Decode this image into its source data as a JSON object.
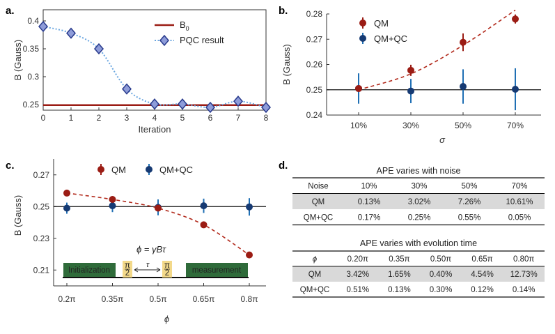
{
  "panels": {
    "a": "a.",
    "b": "b.",
    "c": "c.",
    "d": "d."
  },
  "colors": {
    "red": "#9b1c14",
    "blue": "#163a73",
    "bar_blue": "#1f6fb4",
    "diamond_fill": "#8e9cd9",
    "diamond_edge": "#283a8c",
    "dotted": "#6aa6e0",
    "green": "#2f6b3a",
    "pulse": "#f3d98a",
    "table_shade": "#d9d9d9"
  },
  "chart_data": [
    {
      "id": "a",
      "type": "line",
      "title": "",
      "xlabel": "Iteration",
      "ylabel": "B (Gauss)",
      "xlim": [
        0,
        8
      ],
      "ylim": [
        0.24,
        0.42
      ],
      "xticks": [
        "0",
        "1",
        "2",
        "3",
        "4",
        "5",
        "6",
        "7",
        "8"
      ],
      "yticks": [
        0.25,
        0.3,
        0.35,
        0.4
      ],
      "ytick_labels": [
        "0.25",
        "0.3",
        "0.35",
        "0.4"
      ],
      "legend": [
        "B_0",
        "PQC result"
      ],
      "b0": 0.249,
      "series": [
        {
          "name": "PQC result",
          "x": [
            0,
            1,
            2,
            3,
            4,
            5,
            6,
            7,
            8
          ],
          "values": [
            0.39,
            0.378,
            0.35,
            0.278,
            0.251,
            0.251,
            0.245,
            0.256,
            0.245
          ]
        }
      ]
    },
    {
      "id": "b",
      "type": "scatter",
      "xlabel": "σ",
      "ylabel": "B (Gauss)",
      "ylim": [
        0.24,
        0.28
      ],
      "categories": [
        "10%",
        "30%",
        "50%",
        "70%"
      ],
      "yticks": [
        "0.24",
        "0.25",
        "0.26",
        "0.27",
        "0.28"
      ],
      "reference": 0.25,
      "legend": [
        "QM",
        "QM+QC"
      ],
      "series": [
        {
          "name": "QM",
          "values": [
            0.2505,
            0.2577,
            0.2688,
            0.278
          ],
          "err": [
            0.0,
            0.0022,
            0.0035,
            0.0018
          ]
        },
        {
          "name": "QM+QC",
          "values": [
            0.2505,
            0.2495,
            0.2513,
            0.2502
          ],
          "err": [
            0.006,
            0.0048,
            0.0068,
            0.0083
          ]
        }
      ],
      "fit": {
        "name": "QM fit",
        "values": [
          0.25,
          0.2563,
          0.2676,
          0.2815
        ]
      }
    },
    {
      "id": "c",
      "type": "scatter",
      "xlabel": "ϕ",
      "ylabel": "B (Gauss)",
      "ylim": [
        0.2,
        0.28
      ],
      "categories": [
        "0.2π",
        "0.35π",
        "0.5π",
        "0.65π",
        "0.8π"
      ],
      "yticks": [
        "0.21",
        "0.23",
        "0.25",
        "0.27"
      ],
      "reference": 0.25,
      "legend": [
        "QM",
        "QM+QC"
      ],
      "series": [
        {
          "name": "QM",
          "values": [
            0.2585,
            0.2545,
            0.249,
            0.2385,
            0.2195
          ],
          "err": [
            0.0,
            0.0,
            0.0,
            0.0,
            0.0
          ]
        },
        {
          "name": "QM+QC",
          "values": [
            0.249,
            0.2505,
            0.2495,
            0.2505,
            0.2498
          ],
          "err": [
            0.0035,
            0.004,
            0.005,
            0.0045,
            0.0055
          ]
        }
      ],
      "annotation": {
        "formula": "ϕ = γBτ",
        "init_label": "Initialization",
        "meas_label": "measurement",
        "pulse_num": "π",
        "pulse_den": "2",
        "tau": "τ"
      }
    },
    {
      "id": "d",
      "type": "table",
      "tables": [
        {
          "title": "APE varies with noise",
          "header": [
            "Noise",
            "10%",
            "30%",
            "50%",
            "70%"
          ],
          "rows": [
            [
              "QM",
              "0.13%",
              "3.02%",
              "7.26%",
              "10.61%"
            ],
            [
              "QM+QC",
              "0.17%",
              "0.25%",
              "0.55%",
              "0.05%"
            ]
          ]
        },
        {
          "title": "APE varies with evolution time",
          "header": [
            "ϕ",
            "0.20π",
            "0.35π",
            "0.50π",
            "0.65π",
            "0.80π"
          ],
          "rows": [
            [
              "QM",
              "3.42%",
              "1.65%",
              "0.40%",
              "4.54%",
              "12.73%"
            ],
            [
              "QM+QC",
              "0.51%",
              "0.13%",
              "0.30%",
              "0.12%",
              "0.14%"
            ]
          ]
        }
      ]
    }
  ]
}
